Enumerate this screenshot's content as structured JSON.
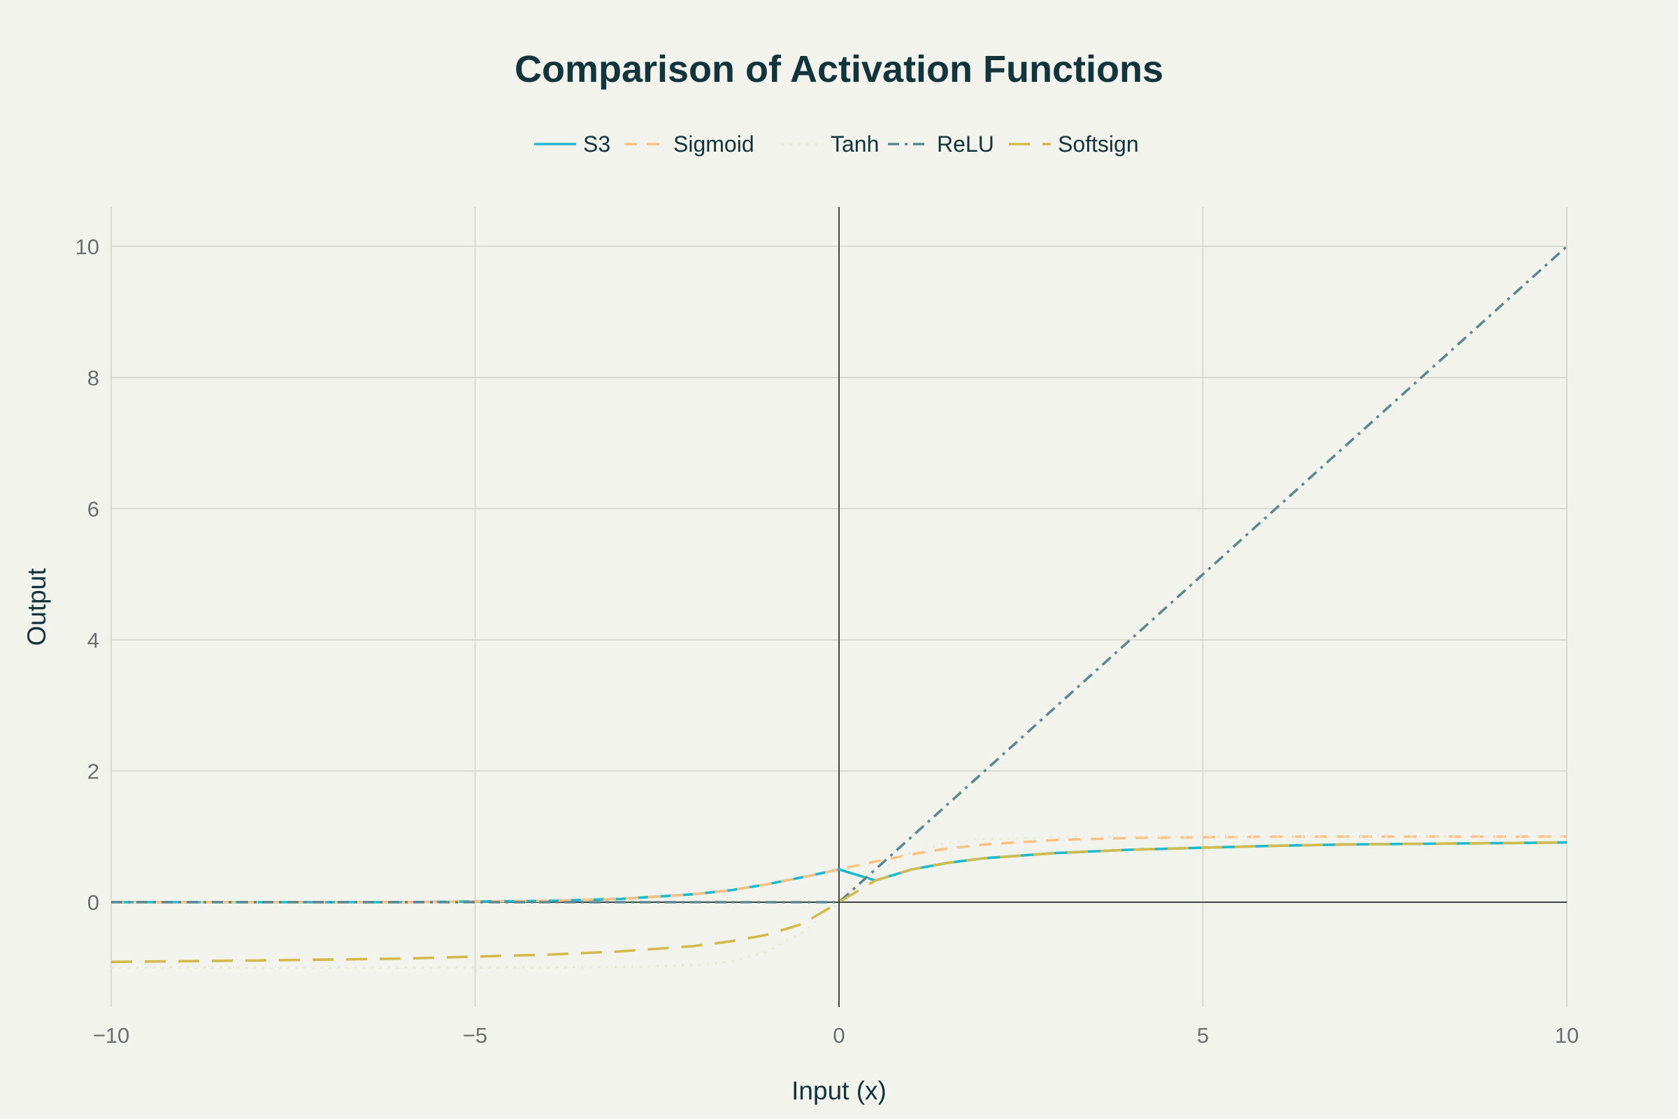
{
  "chart_data": {
    "type": "line",
    "title": "Comparison of Activation Functions",
    "xlabel": "Input (x)",
    "ylabel": "Output",
    "xlim": [
      -10,
      10
    ],
    "ylim": [
      -1.6,
      10.6
    ],
    "x_ticks": [
      "−10",
      "−5",
      "0",
      "5",
      "10"
    ],
    "y_ticks": [
      "0",
      "2",
      "4",
      "6",
      "8",
      "10"
    ],
    "grid": true,
    "legend_placement": "top-center",
    "series": [
      {
        "name": "S3",
        "color": "#1fb8cd",
        "style": "solid",
        "x": [
          -10,
          -8,
          -6,
          -4,
          -3,
          -2,
          -1.5,
          -1,
          -0.5,
          0,
          0.5,
          1,
          1.5,
          2,
          3,
          4,
          5,
          6,
          7,
          8,
          9,
          10
        ],
        "y": [
          0.0,
          0.0,
          0.0,
          0.02,
          0.05,
          0.12,
          0.18,
          0.27,
          0.38,
          0.5,
          0.33,
          0.5,
          0.6,
          0.67,
          0.75,
          0.8,
          0.83,
          0.86,
          0.88,
          0.89,
          0.9,
          0.91
        ]
      },
      {
        "name": "Sigmoid",
        "color": "#ffc185",
        "style": "dash",
        "x": [
          -10,
          -8,
          -6,
          -4,
          -3,
          -2,
          -1.5,
          -1,
          -0.5,
          0,
          0.5,
          1,
          1.5,
          2,
          3,
          4,
          5,
          6,
          7,
          8,
          9,
          10
        ],
        "y": [
          0.0,
          0.0,
          0.0,
          0.02,
          0.05,
          0.12,
          0.18,
          0.27,
          0.38,
          0.5,
          0.62,
          0.73,
          0.82,
          0.88,
          0.95,
          0.98,
          0.99,
          1.0,
          1.0,
          1.0,
          1.0,
          1.0
        ]
      },
      {
        "name": "Tanh",
        "color": "#ecebd5",
        "style": "dot",
        "x": [
          -10,
          -8,
          -6,
          -4,
          -3,
          -2,
          -1.5,
          -1,
          -0.5,
          0,
          0.5,
          1,
          1.5,
          2,
          3,
          4,
          5,
          6,
          7,
          8,
          9,
          10
        ],
        "y": [
          -1.0,
          -1.0,
          -1.0,
          -1.0,
          -0.99,
          -0.96,
          -0.91,
          -0.76,
          -0.46,
          0.0,
          0.46,
          0.76,
          0.91,
          0.96,
          0.99,
          1.0,
          1.0,
          1.0,
          1.0,
          1.0,
          1.0,
          1.0
        ]
      },
      {
        "name": "ReLU",
        "color": "#5d878f",
        "style": "dashdot",
        "x": [
          -10,
          0,
          10
        ],
        "y": [
          0,
          0,
          10
        ]
      },
      {
        "name": "Softsign",
        "color": "#d2ba4c",
        "style": "longdash",
        "x": [
          -10,
          -8,
          -6,
          -4,
          -3,
          -2,
          -1.5,
          -1,
          -0.5,
          0,
          0.5,
          1,
          1.5,
          2,
          3,
          4,
          5,
          6,
          7,
          8,
          9,
          10
        ],
        "y": [
          -0.91,
          -0.89,
          -0.86,
          -0.8,
          -0.75,
          -0.67,
          -0.6,
          -0.5,
          -0.33,
          0.0,
          0.33,
          0.5,
          0.6,
          0.67,
          0.75,
          0.8,
          0.83,
          0.86,
          0.88,
          0.89,
          0.9,
          0.91
        ]
      }
    ]
  }
}
